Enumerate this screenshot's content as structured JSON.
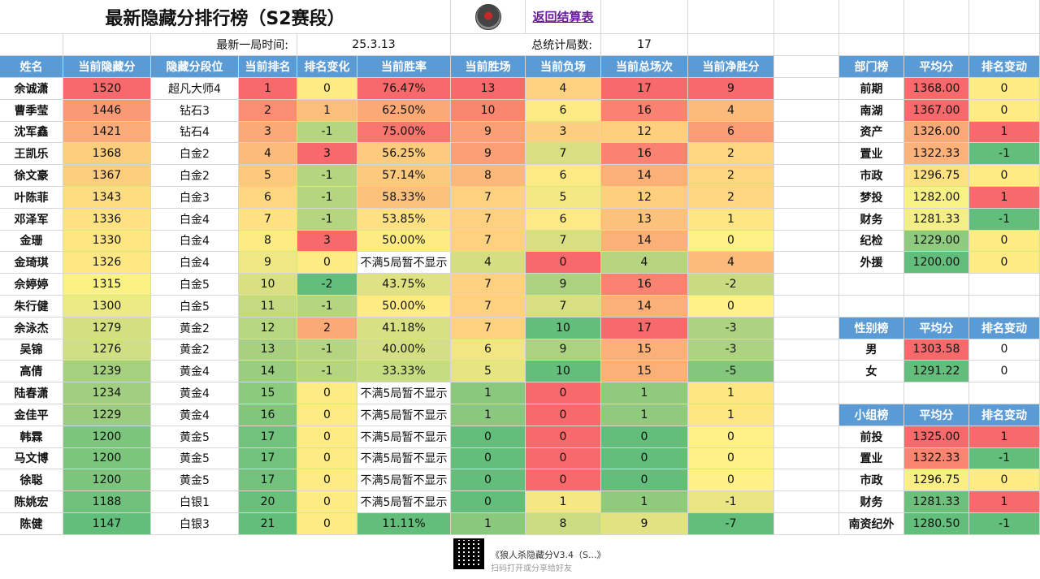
{
  "title": "最新隐藏分排行榜（S2赛段）",
  "back_link": "返回结算表",
  "info": {
    "latest_label": "最新一局时间:",
    "latest_value": "25.3.13",
    "games_label": "总统计局数:",
    "games_value": "17"
  },
  "main_headers": [
    "姓名",
    "当前隐藏分",
    "隐藏分段位",
    "当前排名",
    "排名变化",
    "当前胜率",
    "当前胜场",
    "当前负场",
    "当前总场次",
    "当前净胜分"
  ],
  "rows": [
    [
      "余诚潇",
      "1520",
      "超凡大师4",
      "1",
      "0",
      "76.47%",
      "13",
      "4",
      "17",
      "9"
    ],
    [
      "曹季莹",
      "1446",
      "钻石3",
      "2",
      "1",
      "62.50%",
      "10",
      "6",
      "16",
      "4"
    ],
    [
      "沈军鑫",
      "1421",
      "钻石4",
      "3",
      "-1",
      "75.00%",
      "9",
      "3",
      "12",
      "6"
    ],
    [
      "王凯乐",
      "1368",
      "白金2",
      "4",
      "3",
      "56.25%",
      "9",
      "7",
      "16",
      "2"
    ],
    [
      "徐文豪",
      "1367",
      "白金2",
      "5",
      "-1",
      "57.14%",
      "8",
      "6",
      "14",
      "2"
    ],
    [
      "叶陈菲",
      "1343",
      "白金3",
      "6",
      "-1",
      "58.33%",
      "7",
      "5",
      "12",
      "2"
    ],
    [
      "邓泽军",
      "1336",
      "白金4",
      "7",
      "-1",
      "53.85%",
      "7",
      "6",
      "13",
      "1"
    ],
    [
      "金珊",
      "1330",
      "白金4",
      "8",
      "3",
      "50.00%",
      "7",
      "7",
      "14",
      "0"
    ],
    [
      "金琦琪",
      "1326",
      "白金4",
      "9",
      "0",
      "不满5局暂不显示",
      "4",
      "0",
      "4",
      "4"
    ],
    [
      "佘婷婷",
      "1315",
      "白金5",
      "10",
      "-2",
      "43.75%",
      "7",
      "9",
      "16",
      "-2"
    ],
    [
      "朱行健",
      "1300",
      "白金5",
      "11",
      "-1",
      "50.00%",
      "7",
      "7",
      "14",
      "0"
    ],
    [
      "余泳杰",
      "1279",
      "黄金2",
      "12",
      "2",
      "41.18%",
      "7",
      "10",
      "17",
      "-3"
    ],
    [
      "吴锦",
      "1276",
      "黄金2",
      "13",
      "-1",
      "40.00%",
      "6",
      "9",
      "15",
      "-3"
    ],
    [
      "高倩",
      "1239",
      "黄金4",
      "14",
      "-1",
      "33.33%",
      "5",
      "10",
      "15",
      "-5"
    ],
    [
      "陆春潇",
      "1234",
      "黄金4",
      "15",
      "0",
      "不满5局暂不显示",
      "1",
      "0",
      "1",
      "1"
    ],
    [
      "金佳平",
      "1229",
      "黄金4",
      "16",
      "0",
      "不满5局暂不显示",
      "1",
      "0",
      "1",
      "1"
    ],
    [
      "韩霖",
      "1200",
      "黄金5",
      "17",
      "0",
      "不满5局暂不显示",
      "0",
      "0",
      "0",
      "0"
    ],
    [
      "马文博",
      "1200",
      "黄金5",
      "17",
      "0",
      "不满5局暂不显示",
      "0",
      "0",
      "0",
      "0"
    ],
    [
      "徐聪",
      "1200",
      "黄金5",
      "17",
      "0",
      "不满5局暂不显示",
      "0",
      "0",
      "0",
      "0"
    ],
    [
      "陈姚宏",
      "1188",
      "白银1",
      "20",
      "0",
      "不满5局暂不显示",
      "0",
      "1",
      "1",
      "-1"
    ],
    [
      "陈健",
      "1147",
      "白银3",
      "21",
      "0",
      "11.11%",
      "1",
      "8",
      "9",
      "-7"
    ]
  ],
  "main_colors": [
    [
      "",
      "#f8696b",
      "",
      "#f8696b",
      "#ffeb84",
      "#f8696b",
      "#f8696b",
      "#fdd17f",
      "#f8696b",
      "#f8696b"
    ],
    [
      "",
      "#fa9a75",
      "",
      "#fa8e72",
      "#fcbf7b",
      "#fbaa77",
      "#f9866f",
      "#feea84",
      "#f98370",
      "#fcbb7a"
    ],
    [
      "",
      "#fbab78",
      "",
      "#fba977",
      "#b5d57f",
      "#f9766e",
      "#fb9f76",
      "#fdce7f",
      "#fecf7f",
      "#fa9d74"
    ],
    [
      "",
      "#fdcd7e",
      "",
      "#fcbb7a",
      "#f8696b",
      "#fdcb7e",
      "#fb9f76",
      "#d7df82",
      "#f98370",
      "#fed681"
    ],
    [
      "",
      "#fdcd7e",
      "",
      "#fec87d",
      "#b5d57f",
      "#fdc97d",
      "#fcb87a",
      "#feea84",
      "#fbb077",
      "#fed681"
    ],
    [
      "",
      "#fedd81",
      "",
      "#fed680",
      "#b5d57f",
      "#fcc17b",
      "#fdd17f",
      "#f4e883",
      "#fecf7f",
      "#fed681"
    ],
    [
      "",
      "#fee282",
      "",
      "#fee282",
      "#b5d57f",
      "#fee182",
      "#fdd17f",
      "#feea84",
      "#fcc17b",
      "#fee683"
    ],
    [
      "",
      "#ffe683",
      "",
      "#feeb84",
      "#f8696b",
      "#ffeb84",
      "#fdd17f",
      "#d7df82",
      "#fbb077",
      "#fff185"
    ],
    [
      "",
      "#ffe883",
      "",
      "#eee783",
      "#ffeb84",
      "",
      "#d5df82",
      "#f8696b",
      "#b7d580",
      "#fcbb7a"
    ],
    [
      "",
      "#fbf284",
      "",
      "#d8e081",
      "#63be7b",
      "#dfe283",
      "#fdd17f",
      "#acd27f",
      "#f98370",
      "#c8db80"
    ],
    [
      "",
      "#ebea84",
      "",
      "#c5da80",
      "#b5d57f",
      "#ffeb84",
      "#fdd17f",
      "#d7df82",
      "#fbb077",
      "#fff185"
    ],
    [
      "",
      "#d2e082",
      "",
      "#b7d680",
      "#fbaa77",
      "#d7e082",
      "#fdd17f",
      "#63be7b",
      "#f8696b",
      "#aed380"
    ],
    [
      "",
      "#cfdf82",
      "",
      "#a8d17f",
      "#b5d57f",
      "#d3df82",
      "#f2e683",
      "#acd27f",
      "#fbb077",
      "#aed380"
    ],
    [
      "",
      "#a5d07f",
      "",
      "#9acd7f",
      "#b5d57f",
      "#c6dc80",
      "#e6e483",
      "#63be7b",
      "#fbb077",
      "#84c77c"
    ],
    [
      "",
      "#a2cf7f",
      "",
      "#8ccb7e",
      "#ffeb84",
      "",
      "#89c87d",
      "#f8696b",
      "#90ca7d",
      "#fee683"
    ],
    [
      "",
      "#9ccd7e",
      "",
      "#80c77d",
      "#ffeb84",
      "",
      "#89c87d",
      "#f8696b",
      "#90ca7d",
      "#fee683"
    ],
    [
      "",
      "#7bc57c",
      "",
      "#71c27c",
      "#ffeb84",
      "",
      "#63be7b",
      "#f8696b",
      "#63be7b",
      "#fff185"
    ],
    [
      "",
      "#7bc57c",
      "",
      "#71c27c",
      "#ffeb84",
      "",
      "#63be7b",
      "#f8696b",
      "#63be7b",
      "#fff185"
    ],
    [
      "",
      "#7bc57c",
      "",
      "#71c27c",
      "#ffeb84",
      "",
      "#63be7b",
      "#f8696b",
      "#63be7b",
      "#fff185"
    ],
    [
      "",
      "#6fc17b",
      "",
      "#69c07b",
      "#ffeb84",
      "",
      "#63be7b",
      "#f5e884",
      "#90ca7d",
      "#eae584"
    ],
    [
      "",
      "#63be7b",
      "",
      "#63be7b",
      "#ffeb84",
      "#63be7b",
      "#89c87d",
      "#c9dc81",
      "#e1e383",
      "#63be7b"
    ]
  ],
  "dept": {
    "headers": [
      "部门榜",
      "平均分",
      "排名变动"
    ],
    "rows": [
      [
        "前期",
        "1368.00",
        "0"
      ],
      [
        "南湖",
        "1367.00",
        "0"
      ],
      [
        "资产",
        "1326.00",
        "1"
      ],
      [
        "置业",
        "1322.33",
        "-1"
      ],
      [
        "市政",
        "1296.75",
        "0"
      ],
      [
        "梦投",
        "1282.00",
        "1"
      ],
      [
        "财务",
        "1281.33",
        "-1"
      ],
      [
        "纪检",
        "1229.00",
        "0"
      ],
      [
        "外援",
        "1200.00",
        "0"
      ]
    ],
    "colors": [
      [
        "",
        "#f8696b",
        "#ffeb84"
      ],
      [
        "",
        "#f8696b",
        "#ffeb84"
      ],
      [
        "",
        "#fbaa77",
        "#f8696b"
      ],
      [
        "",
        "#fcb27a",
        "#63be7b"
      ],
      [
        "",
        "#fee182",
        "#ffeb84"
      ],
      [
        "",
        "#f8f284",
        "#f8696b"
      ],
      [
        "",
        "#f4ef84",
        "#63be7b"
      ],
      [
        "",
        "#8fcb7e",
        "#ffeb84"
      ],
      [
        "",
        "#63be7b",
        "#ffeb84"
      ]
    ]
  },
  "gender": {
    "headers": [
      "性别榜",
      "平均分",
      "排名变动"
    ],
    "rows": [
      [
        "男",
        "1303.58",
        "0"
      ],
      [
        "女",
        "1291.22",
        "0"
      ]
    ],
    "colors": [
      [
        "",
        "#f8696b",
        ""
      ],
      [
        "",
        "#63be7b",
        ""
      ]
    ]
  },
  "group": {
    "headers": [
      "小组榜",
      "平均分",
      "排名变动"
    ],
    "rows": [
      [
        "前投",
        "1325.00",
        "1"
      ],
      [
        "置业",
        "1322.33",
        "-1"
      ],
      [
        "市政",
        "1296.75",
        "0"
      ],
      [
        "财务",
        "1281.33",
        "1"
      ],
      [
        "南资纪外",
        "1280.50",
        "-1"
      ]
    ],
    "colors": [
      [
        "",
        "#f8696b",
        "#f8696b"
      ],
      [
        "",
        "#f98570",
        "#63be7b"
      ],
      [
        "",
        "#f9ef84",
        "#ffeb84"
      ],
      [
        "",
        "#6dc07b",
        "#f8696b"
      ],
      [
        "",
        "#63be7b",
        "#63be7b"
      ]
    ]
  },
  "footer": {
    "line1": "《狼人杀隐藏分V3.4（S...》",
    "line2": "扫码打开或分享给好友"
  }
}
